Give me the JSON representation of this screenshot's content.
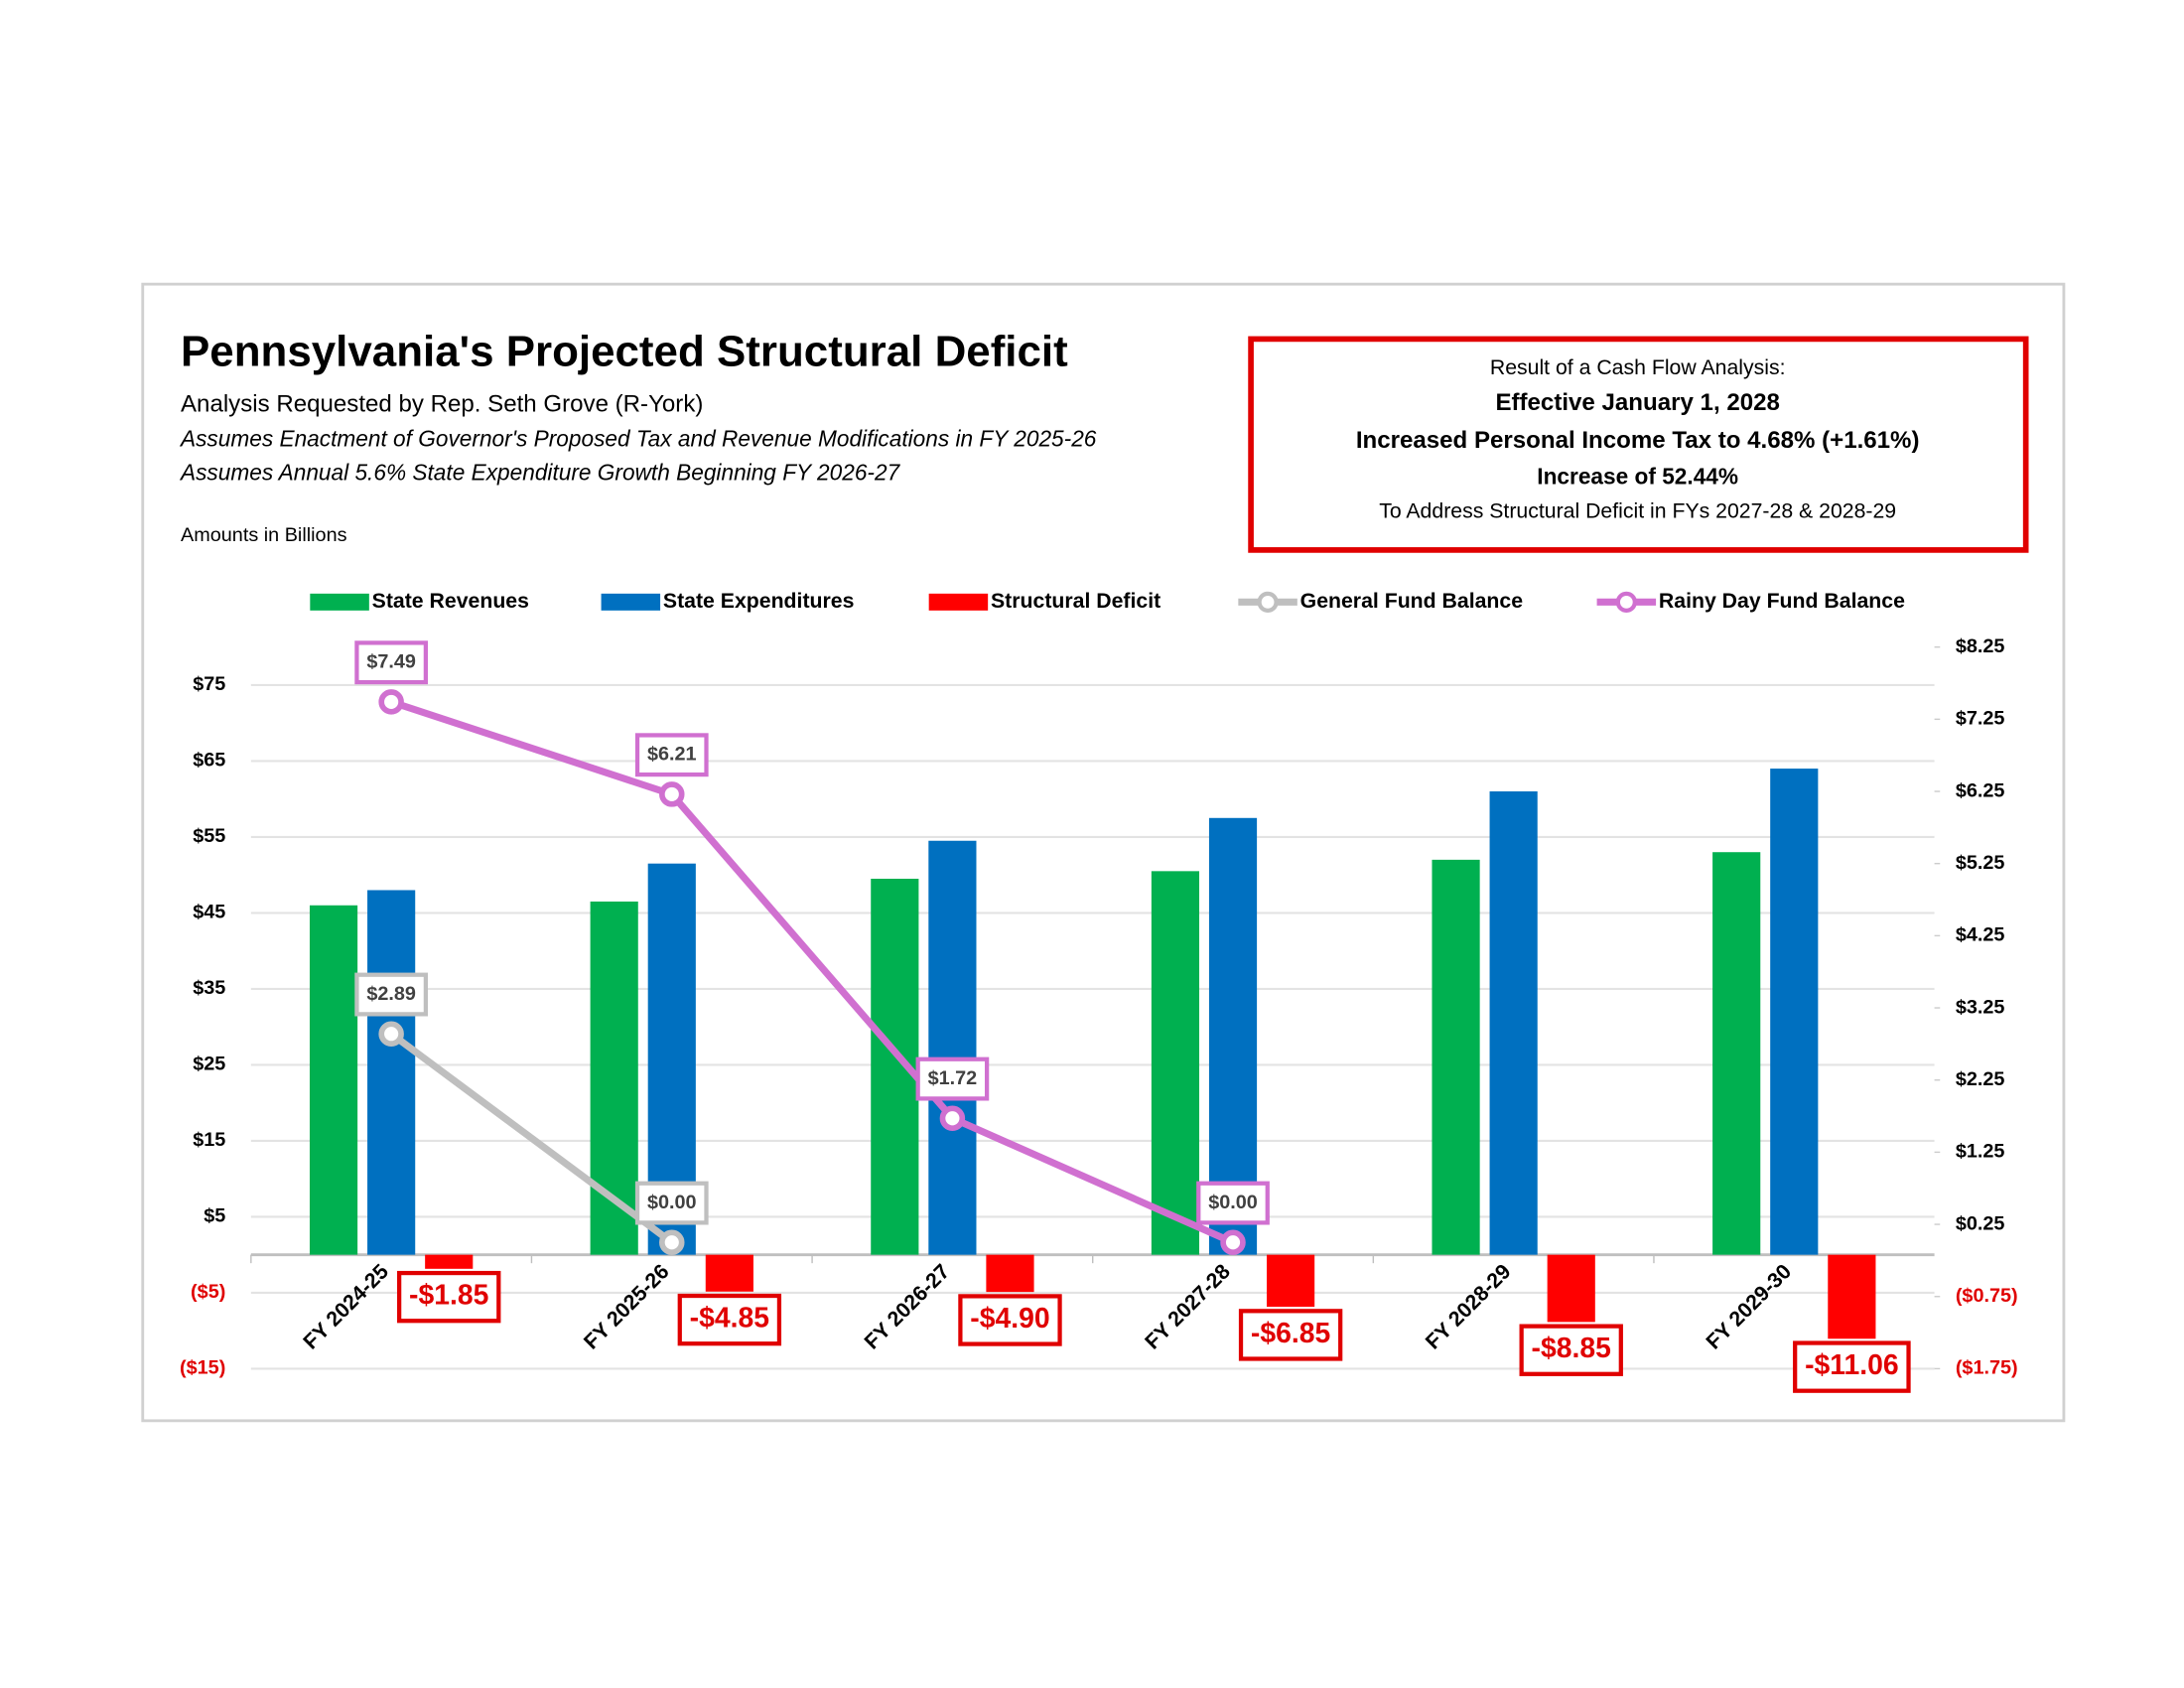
{
  "chart_data": {
    "type": "bar",
    "title": "Pennsylvania's Projected Structural Deficit",
    "subtitle": "Analysis Requested by Rep. Seth Grove (R-York)",
    "notes": [
      "Assumes Enactment of Governor's Proposed Tax and Revenue Modifications in FY 2025-26",
      "Assumes Annual 5.6% State Expenditure Growth Beginning FY 2026-27"
    ],
    "units_note": "Amounts in Billions",
    "callout": [
      "Result of a Cash Flow Analysis:",
      "Effective January 1, 2028",
      "Increased Personal Income Tax to 4.68% (+1.61%)",
      "Increase of 52.44%",
      "To Address Structural Deficit in FYs 2027-28 & 2028-29"
    ],
    "categories": [
      "FY 2024-25",
      "FY 2025-26",
      "FY 2026-27",
      "FY 2027-28",
      "FY 2028-29",
      "FY 2029-30"
    ],
    "series": [
      {
        "name": "State Revenues",
        "type": "bar",
        "color": "#00b050",
        "values": [
          46,
          46.5,
          49.5,
          50.5,
          52,
          53
        ]
      },
      {
        "name": "State Expenditures",
        "type": "bar",
        "color": "#0070c0",
        "values": [
          48,
          51.5,
          54.5,
          57.5,
          61,
          64
        ]
      },
      {
        "name": "Structural Deficit",
        "type": "bar",
        "color": "#ff0000",
        "values": [
          -1.85,
          -4.85,
          -4.9,
          -6.85,
          -8.85,
          -11.06
        ],
        "value_labels": [
          "-$1.85",
          "-$4.85",
          "-$4.90",
          "-$6.85",
          "-$8.85",
          "-$11.06"
        ]
      },
      {
        "name": "General Fund Balance",
        "type": "line",
        "axis": "y2",
        "color": "#bfbfbf",
        "values": [
          2.89,
          0.0,
          null,
          null,
          null,
          null
        ],
        "value_labels": [
          "$2.89",
          "$0.00",
          null,
          null,
          null,
          null
        ]
      },
      {
        "name": "Rainy Day Fund Balance",
        "type": "line",
        "axis": "y2",
        "color": "#d070d0",
        "values": [
          7.49,
          6.21,
          1.72,
          0.0,
          null,
          null
        ],
        "value_labels": [
          "$7.49",
          "$6.21",
          "$1.72",
          "$0.00",
          null,
          null
        ]
      }
    ],
    "ylim": [
      -15,
      80
    ],
    "yticks": [
      {
        "value": 75,
        "label": "$75"
      },
      {
        "value": 65,
        "label": "$65"
      },
      {
        "value": 55,
        "label": "$55"
      },
      {
        "value": 45,
        "label": "$45"
      },
      {
        "value": 35,
        "label": "$35"
      },
      {
        "value": 25,
        "label": "$25"
      },
      {
        "value": 15,
        "label": "$15"
      },
      {
        "value": 5,
        "label": "$5"
      },
      {
        "value": -5,
        "label": "($5)"
      },
      {
        "value": -15,
        "label": "($15)"
      }
    ],
    "y2lim": [
      -1.75,
      8.25
    ],
    "y2ticks": [
      {
        "value": 8.25,
        "label": "$8.25"
      },
      {
        "value": 7.25,
        "label": "$7.25"
      },
      {
        "value": 6.25,
        "label": "$6.25"
      },
      {
        "value": 5.25,
        "label": "$5.25"
      },
      {
        "value": 4.25,
        "label": "$4.25"
      },
      {
        "value": 3.25,
        "label": "$3.25"
      },
      {
        "value": 2.25,
        "label": "$2.25"
      },
      {
        "value": 1.25,
        "label": "$1.25"
      },
      {
        "value": 0.25,
        "label": "$0.25"
      },
      {
        "value": -0.75,
        "label": "($0.75)"
      },
      {
        "value": -1.75,
        "label": "($1.75)"
      }
    ],
    "grid": true,
    "legend": "top"
  }
}
